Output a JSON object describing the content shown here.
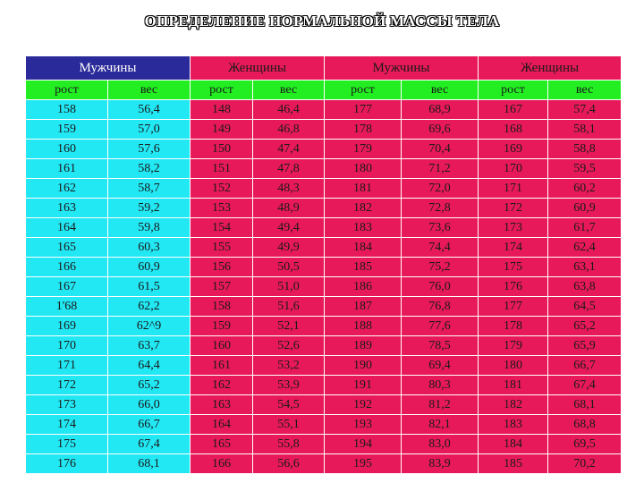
{
  "title": "ОПРЕДЕЛЕНИЕ НОРМАЛЬНОЙ МАССЫ ТЕЛА",
  "groups": [
    "Мужчины",
    "Женщины",
    "Мужчины",
    "Женщины"
  ],
  "subheaders": [
    "рост",
    "вес",
    "рост",
    "вес",
    "рост",
    "вес",
    "рост",
    "вес"
  ],
  "colors": {
    "navy": "#2a2a9a",
    "magenta": "#e8195a",
    "green": "#22ee22",
    "cyan": "#22e8f4"
  },
  "rows": [
    [
      "158",
      "56,4",
      "148",
      "46,4",
      "177",
      "68,9",
      "167",
      "57,4"
    ],
    [
      "159",
      "57,0",
      "149",
      "46,8",
      "178",
      "69,6",
      "168",
      "58,1"
    ],
    [
      "160",
      "57,6",
      "150",
      "47,4",
      "179",
      "70,4",
      "169",
      "58,8"
    ],
    [
      "161",
      "58,2",
      "151",
      "47,8",
      "180",
      "71,2",
      "170",
      "59,5"
    ],
    [
      "162",
      "58,7",
      "152",
      "48,3",
      "181",
      "72,0",
      "171",
      "60,2"
    ],
    [
      "163",
      "59,2",
      "153",
      "48,9",
      "182",
      "72,8",
      "172",
      "60,9"
    ],
    [
      "164",
      "59,8",
      "154",
      "49,4",
      "183",
      "73,6",
      "173",
      "61,7"
    ],
    [
      "165",
      "60,3",
      "155",
      "49,9",
      "184",
      "74,4",
      "174",
      "62,4"
    ],
    [
      "166",
      "60,9",
      "156",
      "50,5",
      "185",
      "75,2",
      "175",
      "63,1"
    ],
    [
      "167",
      "61,5",
      "157",
      "51,0",
      "186",
      "76,0",
      "176",
      "63,8"
    ],
    [
      "1'68",
      "62,2",
      "158",
      "51,6",
      "187",
      "76,8",
      "177",
      "64,5"
    ],
    [
      "169",
      "62^9",
      "159",
      "52,1",
      "188",
      "77,6",
      "178",
      "65,2"
    ],
    [
      "170",
      "63,7",
      "160",
      "52,6",
      "189",
      "78,5",
      "179",
      "65,9"
    ],
    [
      "171",
      "64,4",
      "161",
      "53,2",
      "190",
      "69,4",
      "180",
      "66,7"
    ],
    [
      "172",
      "65,2",
      "162",
      "53,9",
      "191",
      "80,3",
      "181",
      "67,4"
    ],
    [
      "173",
      "66,0",
      "163",
      "54,5",
      "192",
      "81,2",
      "182",
      "68,1"
    ],
    [
      "174",
      "66,7",
      "164",
      "55,1",
      "193",
      "82,1",
      "183",
      "68,8"
    ],
    [
      "175",
      "67,4",
      "165",
      "55,8",
      "194",
      "83,0",
      "184",
      "69,5"
    ],
    [
      "176",
      "68,1",
      "166",
      "56,6",
      "195",
      "83,9",
      "185",
      "70,2"
    ]
  ]
}
